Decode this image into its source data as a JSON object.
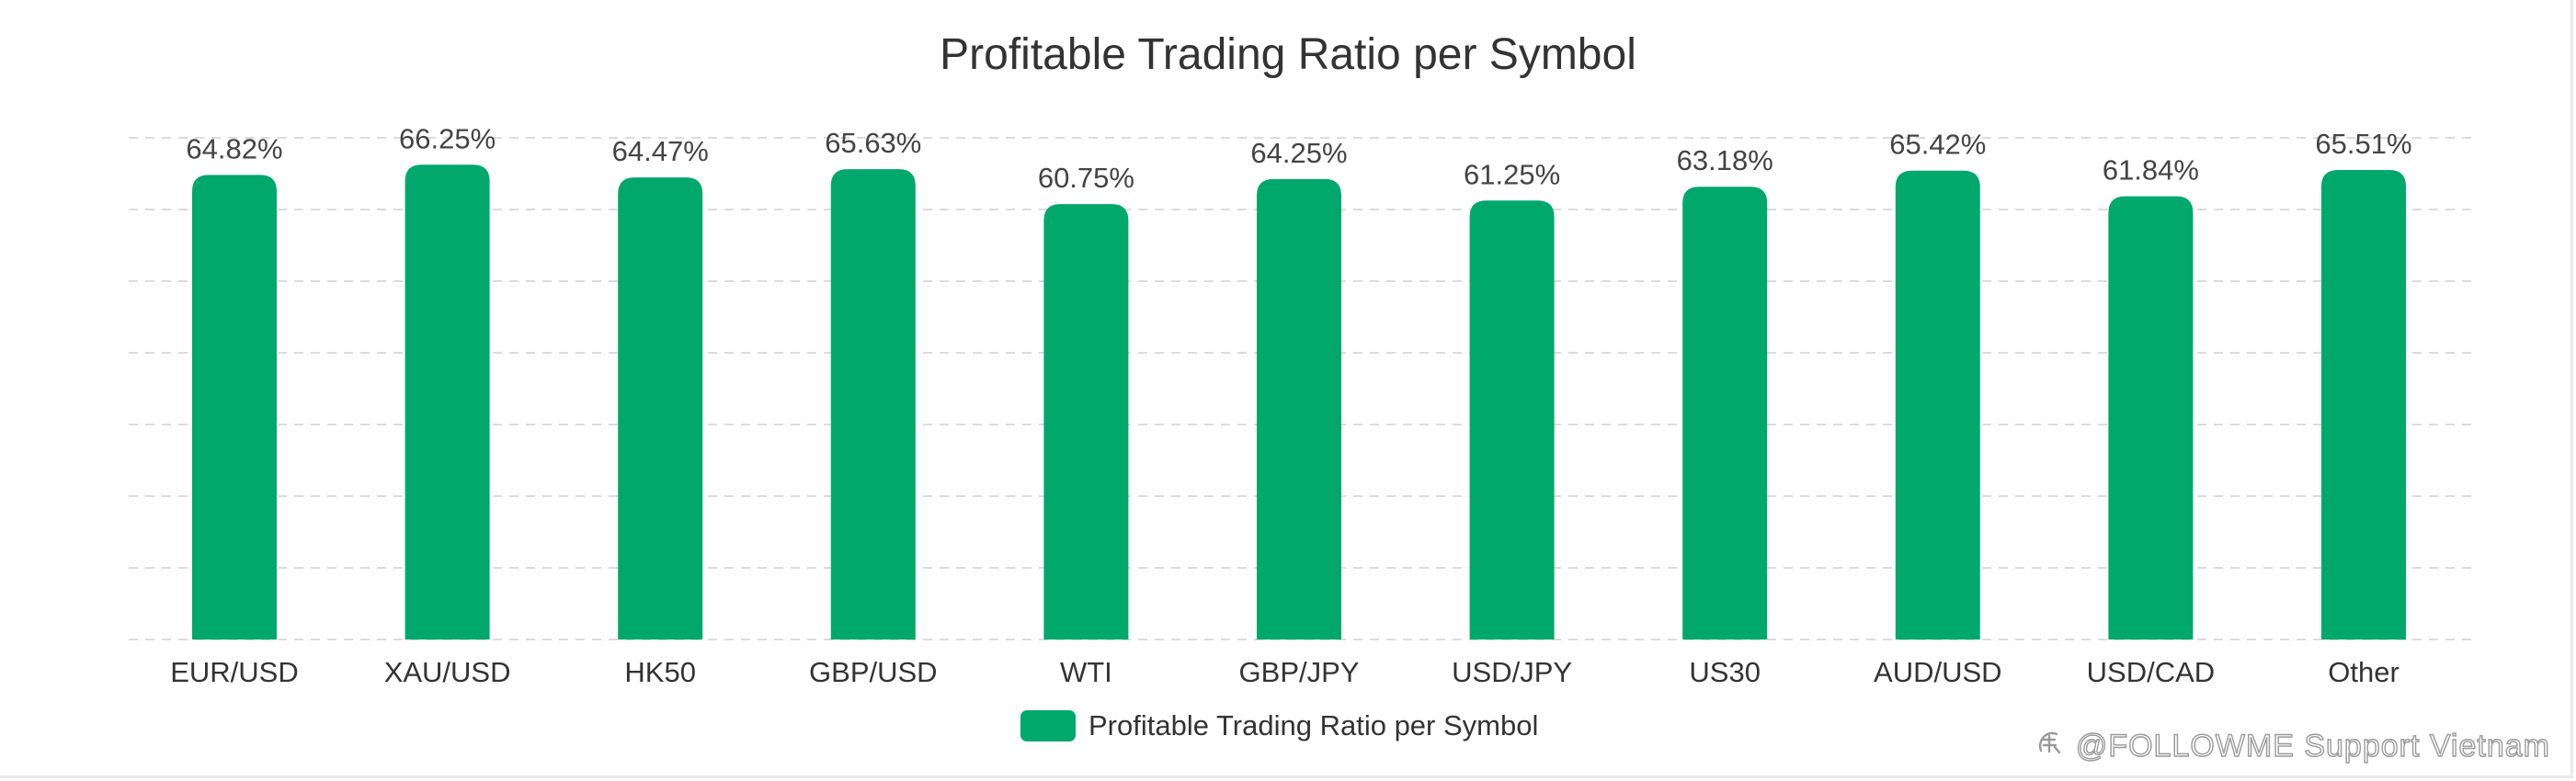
{
  "chart_data": {
    "type": "bar",
    "title": "Profitable Trading Ratio per Symbol",
    "categories": [
      "EUR/USD",
      "XAU/USD",
      "HK50",
      "GBP/USD",
      "WTI",
      "GBP/JPY",
      "USD/JPY",
      "US30",
      "AUD/USD",
      "USD/CAD",
      "Other"
    ],
    "series": [
      {
        "name": "Profitable Trading Ratio per Symbol",
        "values": [
          64.82,
          66.25,
          64.47,
          65.63,
          60.75,
          64.25,
          61.25,
          63.18,
          65.42,
          61.84,
          65.51
        ],
        "labels": [
          "64.82%",
          "66.25%",
          "64.47%",
          "65.63%",
          "60.75%",
          "64.25%",
          "61.25%",
          "63.18%",
          "65.42%",
          "61.84%",
          "65.51%"
        ],
        "color": "#00a86b"
      }
    ],
    "ylim": [
      0,
      70
    ],
    "grid": true,
    "legend_position": "bottom-center"
  },
  "watermark": "@FOLLOWME Support Vietnam",
  "watermark_icon": "zhihu-logo-icon"
}
